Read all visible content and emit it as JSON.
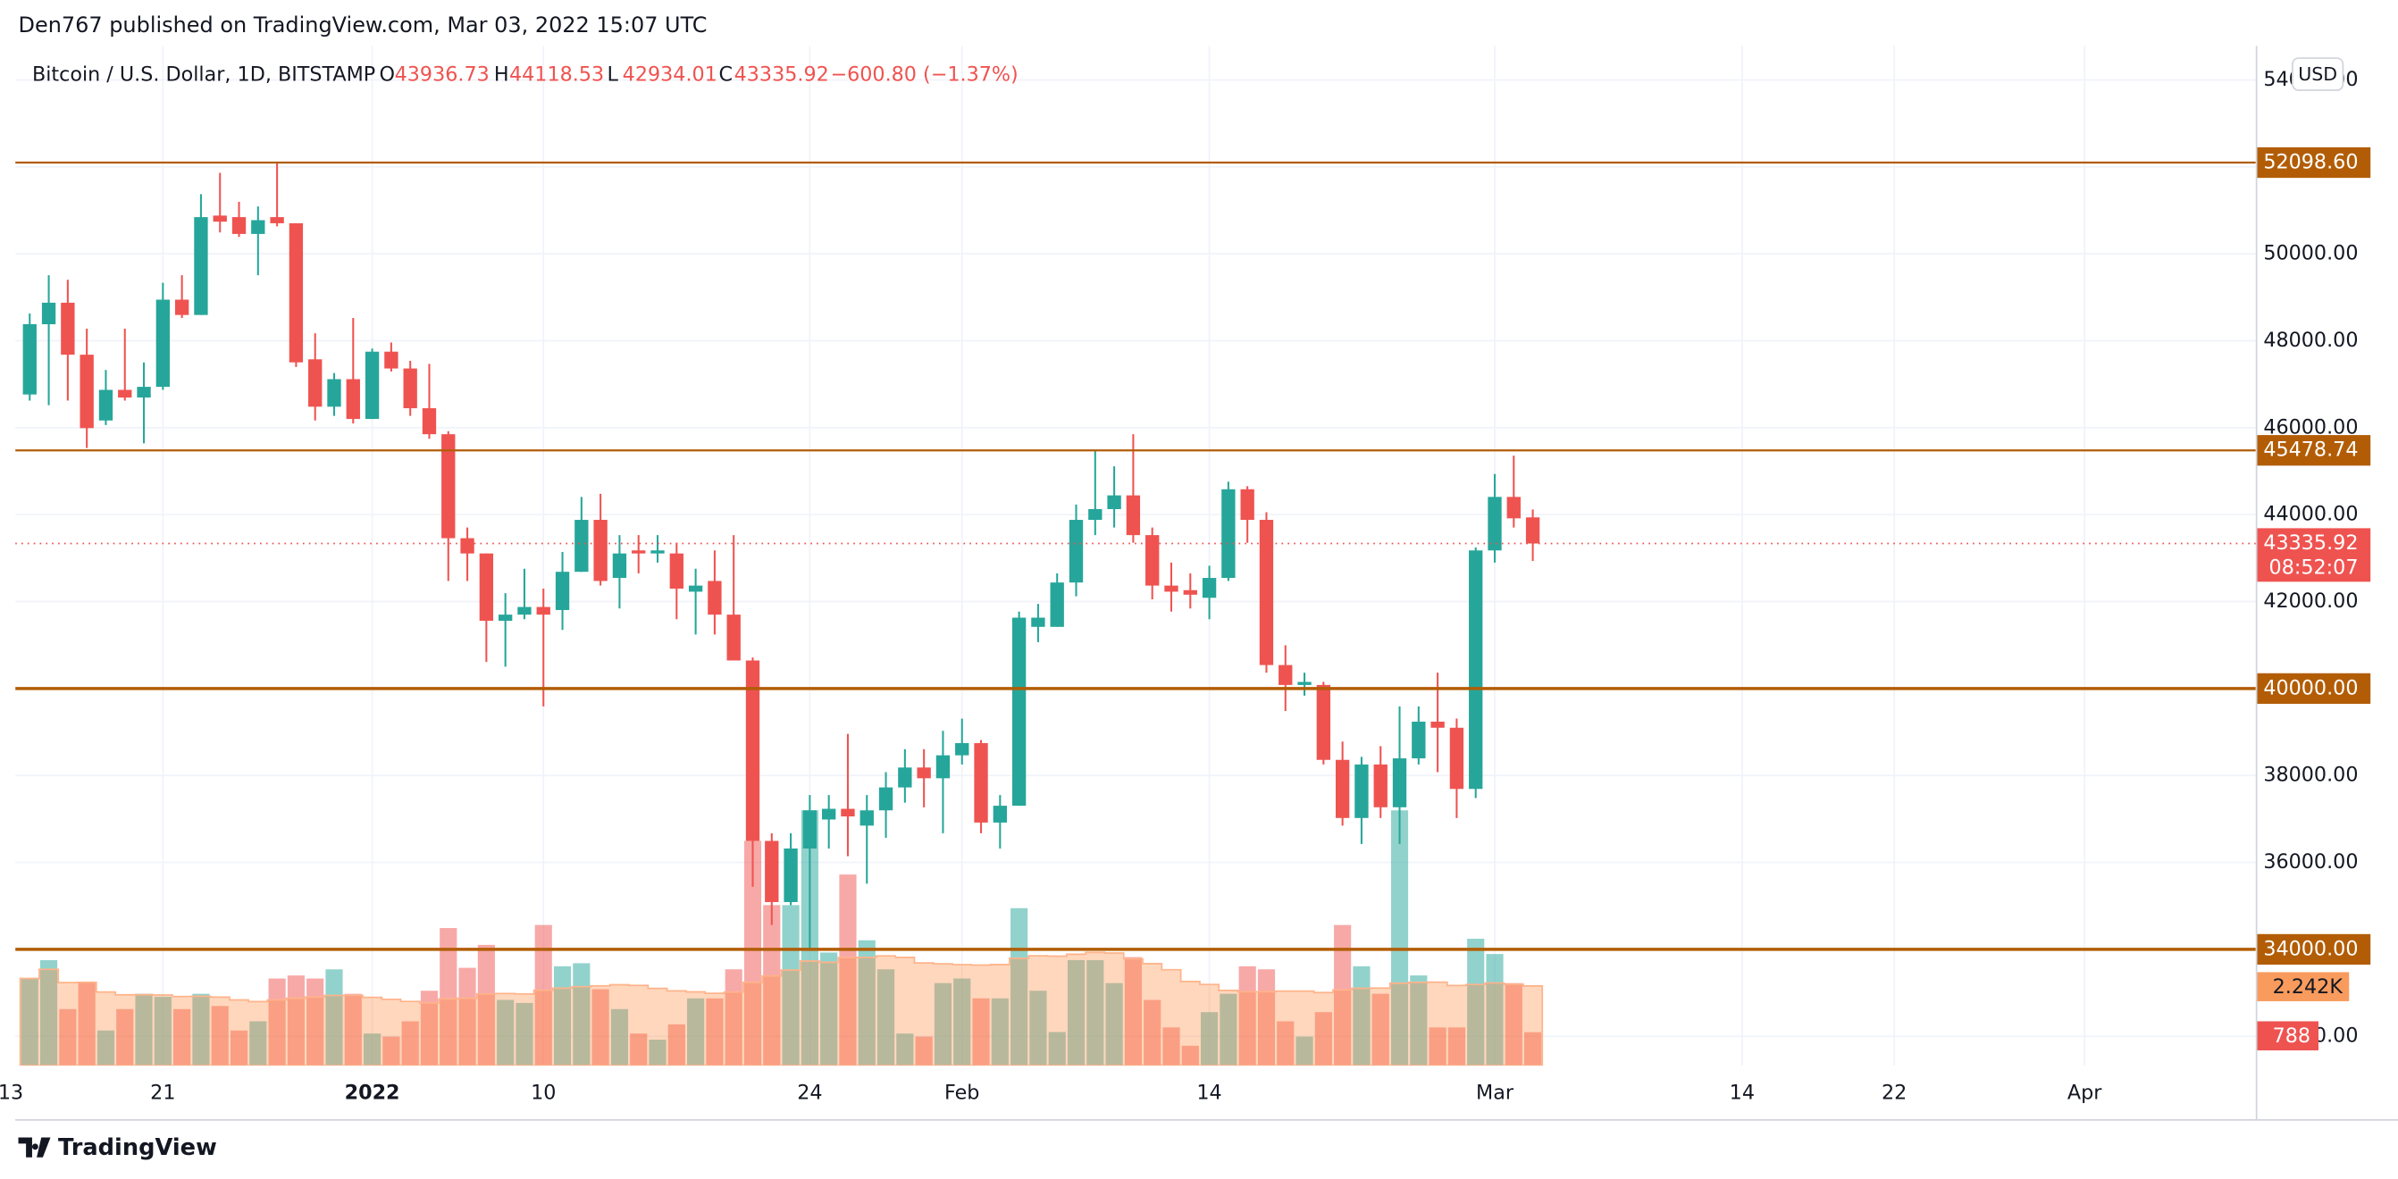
{
  "header": "Den767 published on TradingView.com, Mar 03, 2022 15:07 UTC",
  "footer": "TradingView",
  "chart_data": {
    "type": "candlestick",
    "title": "Bitcoin / U.S. Dollar, 1D, BITSTAMP",
    "legend_keys": [
      "O",
      "H",
      "L",
      "C"
    ],
    "change": "−600.80 (−1.37%)",
    "currency": "USD",
    "countdown": "08:52:07",
    "volume_ma_label": "2.242K",
    "up_color": "#26a69a",
    "down_color": "#ef5350",
    "level_color": "#b25d06",
    "x": [
      "2021-12-14",
      "2021-12-15",
      "2021-12-16",
      "2021-12-17",
      "2021-12-18",
      "2021-12-19",
      "2021-12-20",
      "2021-12-21",
      "2021-12-22",
      "2021-12-23",
      "2021-12-24",
      "2021-12-25",
      "2021-12-26",
      "2021-12-27",
      "2021-12-28",
      "2021-12-29",
      "2021-12-30",
      "2021-12-31",
      "2022-01-01",
      "2022-01-02",
      "2022-01-03",
      "2022-01-04",
      "2022-01-05",
      "2022-01-06",
      "2022-01-07",
      "2022-01-08",
      "2022-01-09",
      "2022-01-10",
      "2022-01-11",
      "2022-01-12",
      "2022-01-13",
      "2022-01-14",
      "2022-01-15",
      "2022-01-16",
      "2022-01-17",
      "2022-01-18",
      "2022-01-19",
      "2022-01-20",
      "2022-01-21",
      "2022-01-22",
      "2022-01-23",
      "2022-01-24",
      "2022-01-25",
      "2022-01-26",
      "2022-01-27",
      "2022-01-28",
      "2022-01-29",
      "2022-01-30",
      "2022-01-31",
      "2022-02-01",
      "2022-02-02",
      "2022-02-03",
      "2022-02-04",
      "2022-02-05",
      "2022-02-06",
      "2022-02-07",
      "2022-02-08",
      "2022-02-09",
      "2022-02-10",
      "2022-02-11",
      "2022-02-12",
      "2022-02-13",
      "2022-02-14",
      "2022-02-15",
      "2022-02-16",
      "2022-02-17",
      "2022-02-18",
      "2022-02-19",
      "2022-02-20",
      "2022-02-21",
      "2022-02-22",
      "2022-02-23",
      "2022-02-24",
      "2022-02-25",
      "2022-02-26",
      "2022-02-27",
      "2022-02-28",
      "2022-03-01",
      "2022-03-02",
      "2022-03-03"
    ],
    "open": [
      46764,
      48380,
      48875,
      47679,
      46166,
      46870,
      46694,
      46940,
      48945,
      48593,
      50879,
      50844,
      50457,
      50844,
      50703,
      47573,
      46483,
      47116,
      46201,
      47749,
      47362,
      46448,
      45850,
      43458,
      43107,
      41559,
      41700,
      41876,
      41806,
      42685,
      43880,
      42544,
      43177,
      43107,
      43107,
      42228,
      42474,
      41700,
      40645,
      36495,
      35088,
      36320,
      36987,
      37233,
      36847,
      37198,
      37725,
      38183,
      37936,
      38464,
      38745,
      36917,
      37304,
      41419,
      41419,
      42439,
      43880,
      44127,
      44443,
      43529,
      42368,
      42263,
      42087,
      42544,
      44584,
      43880,
      40540,
      40082,
      40082,
      38359,
      37022,
      38253,
      37269,
      38394,
      39238,
      39098,
      37691,
      43177,
      44408,
      43936.73
    ],
    "high": [
      48628,
      49508,
      49402,
      48277,
      47327,
      48277,
      47503,
      49332,
      49508,
      51372,
      51864,
      51196,
      51090,
      52110,
      50703,
      48171,
      47257,
      48523,
      47820,
      47960,
      47538,
      47468,
      45920,
      43704,
      43107,
      42193,
      42755,
      42298,
      43142,
      44408,
      44478,
      43529,
      43529,
      43529,
      43353,
      42755,
      43177,
      43529,
      40715,
      36671,
      36671,
      37550,
      37550,
      38956,
      37550,
      38077,
      38605,
      38605,
      39027,
      39308,
      38816,
      37550,
      41770,
      41946,
      42649,
      44232,
      45463,
      45111,
      45850,
      43704,
      42896,
      42649,
      42825,
      44760,
      44654,
      44056,
      40997,
      40364,
      40153,
      38781,
      38429,
      38675,
      39590,
      39590,
      40364,
      39308,
      43247,
      44936,
      45358,
      44118.53
    ],
    "low": [
      46624,
      46518,
      46624,
      45533,
      46061,
      46624,
      45639,
      46870,
      48523,
      48593,
      50492,
      50387,
      49508,
      50633,
      47397,
      46166,
      46272,
      46096,
      46201,
      47292,
      46272,
      45744,
      42474,
      42474,
      40610,
      40504,
      41594,
      39590,
      41348,
      42685,
      42368,
      41841,
      42649,
      42896,
      41594,
      41243,
      41243,
      40645,
      35440,
      34560,
      35018,
      34033,
      36319,
      36143,
      35510,
      36565,
      37374,
      37268,
      36671,
      38253,
      36671,
      36319,
      37304,
      41067,
      41419,
      42122,
      43529,
      43704,
      43353,
      42052,
      41770,
      41841,
      41594,
      42474,
      43353,
      40364,
      39484,
      39836,
      38253,
      36846,
      36424,
      37022,
      36424,
      38253,
      38077,
      37022,
      37480,
      42896,
      43704,
      42934.01
    ],
    "close": [
      48382,
      48875,
      47679,
      45990,
      46870,
      46694,
      46940,
      48945,
      48593,
      50844,
      50739,
      50457,
      50774,
      50703,
      47503,
      46483,
      47116,
      46201,
      47749,
      47362,
      46448,
      45850,
      43458,
      43107,
      41559,
      41700,
      41876,
      41700,
      42685,
      43880,
      42474,
      43107,
      43107,
      43177,
      42298,
      42368,
      41700,
      40645,
      36495,
      35088,
      36320,
      37198,
      37233,
      37058,
      37198,
      37725,
      38183,
      37936,
      38464,
      38745,
      36917,
      37304,
      41630,
      41630,
      42439,
      43880,
      44127,
      44443,
      43529,
      42368,
      42228,
      42158,
      42544,
      44584,
      43880,
      40540,
      40082,
      40152,
      38359,
      37022,
      38253,
      37269,
      38394,
      39238,
      39098,
      37691,
      43177,
      44408,
      43915,
      43335.92
    ],
    "volume": [
      2052,
      2484,
      1332,
      1980,
      828,
      1332,
      1692,
      1620,
      1332,
      1692,
      1404,
      828,
      1044,
      2052,
      2124,
      2052,
      2268,
      1692,
      756,
      684,
      1044,
      1764,
      3240,
      2304,
      2844,
      1548,
      1476,
      3312,
      2340,
      2412,
      1800,
      1332,
      756,
      612,
      972,
      1584,
      1584,
      2268,
      5292,
      3780,
      3780,
      6012,
      2664,
      4500,
      2952,
      2268,
      756,
      684,
      1944,
      2052,
      1584,
      1584,
      3708,
      1764,
      792,
      2484,
      2484,
      1944,
      2556,
      1548,
      900,
      468,
      1260,
      1692,
      2340,
      2268,
      1044,
      684,
      1260,
      3312,
      2340,
      1692,
      6012,
      2124,
      900,
      900,
      2988,
      2628,
      1944,
      788
    ],
    "levels": [
      {
        "value": 52098.6,
        "label": "52098.60"
      },
      {
        "value": 45478.74,
        "label": "45478.74"
      },
      {
        "value": 40000,
        "label": "40000.00"
      },
      {
        "value": 34000,
        "label": "34000.00"
      }
    ],
    "ylim": [
      31325,
      54783
    ],
    "yticks": [
      {
        "value": 32000,
        "label": "32000.00"
      },
      {
        "value": 34000,
        "label": "34000.00"
      },
      {
        "value": 36000,
        "label": "36000.00"
      },
      {
        "value": 38000,
        "label": "38000.00"
      },
      {
        "value": 40000,
        "label": "40000.00"
      },
      {
        "value": 42000,
        "label": "42000.00"
      },
      {
        "value": 44000,
        "label": "44000.00"
      },
      {
        "value": 46000,
        "label": "46000.00"
      },
      {
        "value": 48000,
        "label": "48000.00"
      },
      {
        "value": 50000,
        "label": "50000.00"
      },
      {
        "value": 52000,
        "label": "52000.00"
      },
      {
        "value": 54000,
        "label": "54000.00"
      }
    ],
    "xlim": [
      "2021-12-13",
      "2022-04-10"
    ],
    "xticks": [
      {
        "value": "2021-12-13",
        "label": "13"
      },
      {
        "value": "2021-12-21",
        "label": "21"
      },
      {
        "value": "2022-01-01",
        "label": "2022"
      },
      {
        "value": "2022-01-10",
        "label": "10"
      },
      {
        "value": "2022-01-24",
        "label": "24"
      },
      {
        "value": "2022-02-01",
        "label": "Feb"
      },
      {
        "value": "2022-02-14",
        "label": "14"
      },
      {
        "value": "2022-03-01",
        "label": "Mar"
      },
      {
        "value": "2022-03-14",
        "label": "14"
      },
      {
        "value": "2022-03-22",
        "label": "22"
      },
      {
        "value": "2022-04-01",
        "label": "Apr"
      }
    ],
    "grid": true
  }
}
